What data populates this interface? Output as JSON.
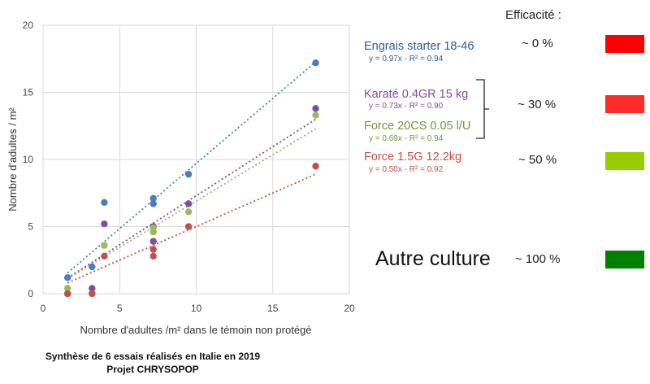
{
  "chart_data": {
    "type": "scatter",
    "xlabel": "Nombre d'adultes /m² dans le témoin non protégé",
    "ylabel": "Nombre d'adultes / m²",
    "xlim": [
      0,
      20
    ],
    "ylim": [
      0,
      20
    ],
    "xticks": [
      "0",
      "5",
      "10",
      "15",
      "20"
    ],
    "yticks": [
      "0",
      "5",
      "10",
      "15",
      "20"
    ],
    "grid": true,
    "series": [
      {
        "name": "Engrais starter 18-46",
        "equation": "y = 0.97x - R² = 0.94",
        "slope": 0.97,
        "color": "#4a7ebb",
        "x": [
          1.6,
          3.2,
          4.0,
          7.2,
          7.2,
          9.5,
          17.8
        ],
        "y": [
          1.2,
          2.0,
          6.8,
          7.1,
          6.7,
          8.9,
          17.2
        ]
      },
      {
        "name": "Karaté 0.4GR 15 kg",
        "equation": "y = 0.73x - R² = 0.90",
        "slope": 0.73,
        "color": "#7d4f9e",
        "x": [
          1.6,
          3.2,
          4.0,
          7.2,
          7.2,
          9.5,
          17.8
        ],
        "y": [
          0.0,
          0.4,
          5.2,
          5.0,
          3.9,
          6.7,
          13.8
        ]
      },
      {
        "name": "Force 20CS 0.05 l/U",
        "equation": "y = 0.69x - R² = 0.94",
        "slope": 0.69,
        "color": "#9bbb59",
        "x": [
          1.6,
          3.2,
          4.0,
          7.2,
          7.2,
          9.5,
          17.8
        ],
        "y": [
          0.4,
          0.0,
          3.6,
          4.6,
          4.9,
          6.1,
          13.3
        ]
      },
      {
        "name": "Force 1.5G 12.2kg",
        "equation": "y = 0.50x - R² = 0.92",
        "slope": 0.5,
        "color": "#c0504d",
        "x": [
          1.6,
          3.2,
          4.0,
          7.2,
          7.2,
          9.5,
          17.8
        ],
        "y": [
          0.0,
          0.0,
          2.8,
          2.8,
          3.3,
          5.0,
          9.5
        ]
      }
    ]
  },
  "efficacy": {
    "header": "Efficacité :",
    "rows": [
      {
        "value": "~ 0 %",
        "color": "#ff0000"
      },
      {
        "value": "~ 30 %",
        "color": "#ff2a2a"
      },
      {
        "value": "~ 50 %",
        "color": "#99cc00"
      },
      {
        "value": "~ 100 %",
        "color": "#008000"
      }
    ],
    "autre_culture": "Autre culture"
  },
  "caption": {
    "line1": "Synthèse de 6 essais réalisés en Italie en 2019",
    "line2": "Projet CHRYSOPOP"
  }
}
